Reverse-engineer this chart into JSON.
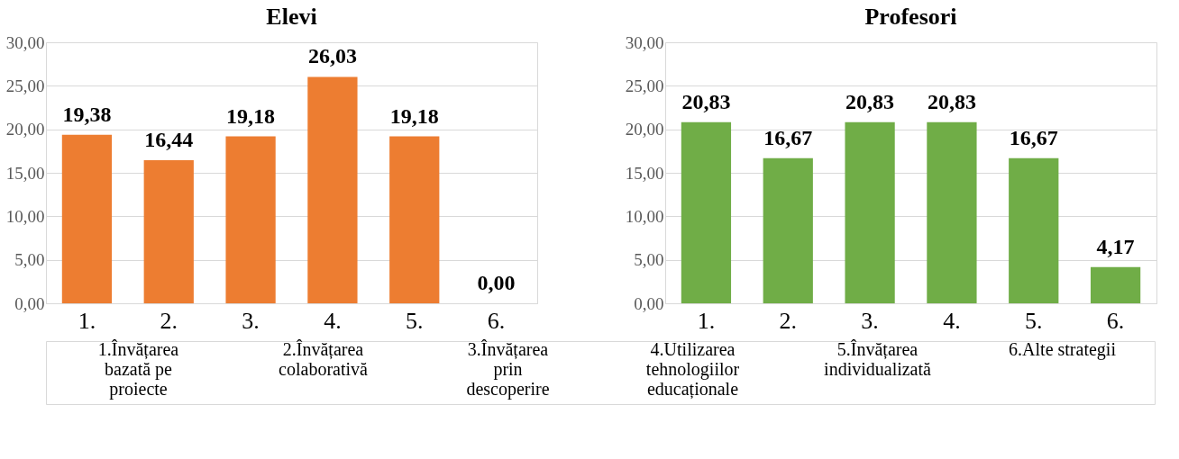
{
  "chart_data": [
    {
      "type": "bar",
      "title": "Elevi",
      "categories": [
        "1.",
        "2.",
        "3.",
        "4.",
        "5.",
        "6."
      ],
      "values": [
        19.38,
        16.44,
        19.18,
        26.03,
        19.18,
        0
      ],
      "color": "#ed7d31",
      "value_labels": [
        "19,38",
        "16,44",
        "19,18",
        "26,03",
        "19,18",
        "0,00"
      ],
      "ylim": [
        0,
        30
      ],
      "yticks": [
        {
          "value": 0,
          "label": "0,00"
        },
        {
          "value": 5,
          "label": "5,00"
        },
        {
          "value": 10,
          "label": "10,00"
        },
        {
          "value": 15,
          "label": "15,00"
        },
        {
          "value": 20,
          "label": "20,00"
        },
        {
          "value": 25,
          "label": "25,00"
        },
        {
          "value": 30,
          "label": "30,00"
        }
      ],
      "grid": "y",
      "annotations": [
        "1.Învățarea\nbazată pe\nproiecte",
        "2.Învățarea\ncolaborativă",
        "3.Învățarea\nprin\ndescoperire",
        "4.Utilizarea\ntehnologiilor\neducaționale",
        "5.Învățarea\nindividualizată",
        "6.Alte strategii"
      ]
    },
    {
      "type": "bar",
      "title": "Profesori",
      "categories": [
        "1.",
        "2.",
        "3.",
        "4.",
        "5.",
        "6."
      ],
      "values": [
        20.83,
        16.67,
        20.83,
        20.83,
        16.67,
        4.17
      ],
      "color": "#70ad47",
      "value_labels": [
        "20,83",
        "16,67",
        "20,83",
        "20,83",
        "16,67",
        "4,17"
      ],
      "ylim": [
        0,
        30
      ],
      "yticks": [
        {
          "value": 0,
          "label": "0,00"
        },
        {
          "value": 5,
          "label": "5,00"
        },
        {
          "value": 10,
          "label": "10,00"
        },
        {
          "value": 15,
          "label": "15,00"
        },
        {
          "value": 20,
          "label": "20,00"
        },
        {
          "value": 25,
          "label": "25,00"
        },
        {
          "value": 30,
          "label": "30,00"
        }
      ],
      "grid": "y"
    }
  ]
}
